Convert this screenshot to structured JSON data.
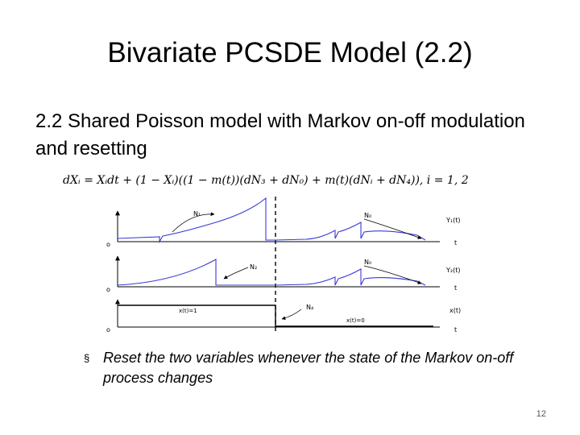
{
  "slide": {
    "title": "Bivariate PCSDE Model (2.2)",
    "subtitle": "2.2   Shared Poisson model with Markov on-off modulation and resetting",
    "formula": "dXᵢ = Xᵢdt + (1 − Xᵢ)((1 − m(t))(dN₃ + dN₀) + m(t)(dNᵢ + dN₄)), i = 1, 2",
    "bullet_marker": "§",
    "bullet": "Reset the two variables whenever the state of the Markov on-off process changes",
    "page_number": "12"
  },
  "diagram": {
    "panel1": {
      "origin": "o",
      "curve_label": "Y₁(t)",
      "axis_label": "t",
      "event_left": "N₁",
      "event_right": "N₀"
    },
    "panel2": {
      "origin": "o",
      "curve_label": "Y₂(t)",
      "axis_label": "t",
      "event_left": "N₂",
      "event_right": "N₀"
    },
    "panel3": {
      "origin": "o",
      "curve_label": "x(t)",
      "axis_label": "t",
      "state_on": "x(t)=1",
      "state_off": "x(t)=0",
      "event": "N₄"
    },
    "colors": {
      "curve": "#3a3ad8",
      "axis": "#000000",
      "divider": "#000000"
    }
  }
}
